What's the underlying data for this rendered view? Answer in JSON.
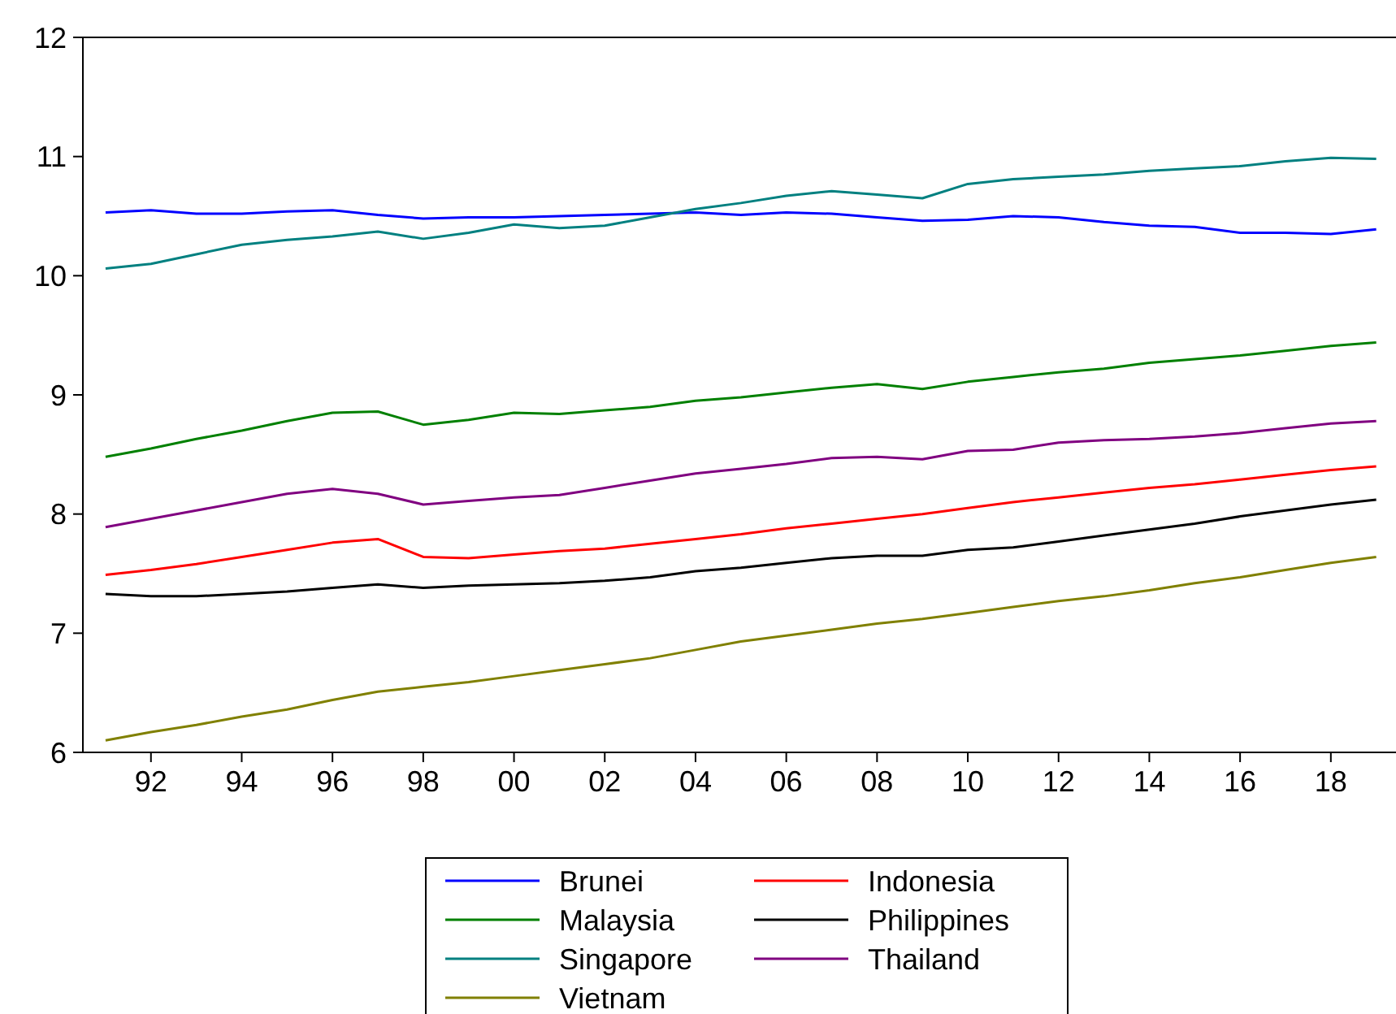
{
  "chart_data": {
    "type": "line",
    "x": [
      1991,
      1992,
      1993,
      1994,
      1995,
      1996,
      1997,
      1998,
      1999,
      2000,
      2001,
      2002,
      2003,
      2004,
      2005,
      2006,
      2007,
      2008,
      2009,
      2010,
      2011,
      2012,
      2013,
      2014,
      2015,
      2016,
      2017,
      2018,
      2019
    ],
    "xlim": [
      1990.5,
      2019.4
    ],
    "xticks": [
      {
        "value": 1992,
        "label": "92"
      },
      {
        "value": 1994,
        "label": "94"
      },
      {
        "value": 1996,
        "label": "96"
      },
      {
        "value": 1998,
        "label": "98"
      },
      {
        "value": 2000,
        "label": "00"
      },
      {
        "value": 2002,
        "label": "02"
      },
      {
        "value": 2004,
        "label": "04"
      },
      {
        "value": 2006,
        "label": "06"
      },
      {
        "value": 2008,
        "label": "08"
      },
      {
        "value": 2010,
        "label": "10"
      },
      {
        "value": 2012,
        "label": "12"
      },
      {
        "value": 2014,
        "label": "14"
      },
      {
        "value": 2016,
        "label": "16"
      },
      {
        "value": 2018,
        "label": "18"
      }
    ],
    "ylim": [
      6,
      12
    ],
    "yticks": [
      6,
      7,
      8,
      9,
      10,
      11,
      12
    ],
    "grid": false,
    "legend": "bottom",
    "line_style": "solid",
    "marker": "none",
    "series": [
      {
        "name": "Brunei",
        "color": "#0000ff",
        "values": [
          10.53,
          10.55,
          10.52,
          10.52,
          10.54,
          10.55,
          10.51,
          10.48,
          10.49,
          10.49,
          10.5,
          10.51,
          10.52,
          10.53,
          10.51,
          10.53,
          10.52,
          10.49,
          10.46,
          10.47,
          10.5,
          10.49,
          10.45,
          10.42,
          10.41,
          10.36,
          10.36,
          10.35,
          10.39
        ]
      },
      {
        "name": "Indonesia",
        "color": "#ff0000",
        "values": [
          7.49,
          7.53,
          7.58,
          7.64,
          7.7,
          7.76,
          7.79,
          7.64,
          7.63,
          7.66,
          7.69,
          7.71,
          7.75,
          7.79,
          7.83,
          7.88,
          7.92,
          7.96,
          8.0,
          8.05,
          8.1,
          8.14,
          8.18,
          8.22,
          8.25,
          8.29,
          8.33,
          8.37,
          8.4
        ]
      },
      {
        "name": "Malaysia",
        "color": "#008000",
        "values": [
          8.48,
          8.55,
          8.63,
          8.7,
          8.78,
          8.85,
          8.86,
          8.75,
          8.79,
          8.85,
          8.84,
          8.87,
          8.9,
          8.95,
          8.98,
          9.02,
          9.06,
          9.09,
          9.05,
          9.11,
          9.15,
          9.19,
          9.22,
          9.27,
          9.3,
          9.33,
          9.37,
          9.41,
          9.44
        ]
      },
      {
        "name": "Philippines",
        "color": "#000000",
        "values": [
          7.33,
          7.31,
          7.31,
          7.33,
          7.35,
          7.38,
          7.41,
          7.38,
          7.4,
          7.41,
          7.42,
          7.44,
          7.47,
          7.52,
          7.55,
          7.59,
          7.63,
          7.65,
          7.65,
          7.7,
          7.72,
          7.77,
          7.82,
          7.87,
          7.92,
          7.98,
          8.03,
          8.08,
          8.12
        ]
      },
      {
        "name": "Singapore",
        "color": "#008080",
        "values": [
          10.06,
          10.1,
          10.18,
          10.26,
          10.3,
          10.33,
          10.37,
          10.31,
          10.36,
          10.43,
          10.4,
          10.42,
          10.49,
          10.56,
          10.61,
          10.67,
          10.71,
          10.68,
          10.65,
          10.77,
          10.81,
          10.83,
          10.85,
          10.88,
          10.9,
          10.92,
          10.96,
          10.99,
          10.98
        ]
      },
      {
        "name": "Thailand",
        "color": "#800080",
        "values": [
          7.89,
          7.96,
          8.03,
          8.1,
          8.17,
          8.21,
          8.17,
          8.08,
          8.11,
          8.14,
          8.16,
          8.22,
          8.28,
          8.34,
          8.38,
          8.42,
          8.47,
          8.48,
          8.46,
          8.53,
          8.54,
          8.6,
          8.62,
          8.63,
          8.65,
          8.68,
          8.72,
          8.76,
          8.78
        ]
      },
      {
        "name": "Vietnam",
        "color": "#808000",
        "values": [
          6.1,
          6.17,
          6.23,
          6.3,
          6.36,
          6.44,
          6.51,
          6.55,
          6.59,
          6.64,
          6.69,
          6.74,
          6.79,
          6.86,
          6.93,
          6.98,
          7.03,
          7.08,
          7.12,
          7.17,
          7.22,
          7.27,
          7.31,
          7.36,
          7.42,
          7.47,
          7.53,
          7.59,
          7.64
        ]
      }
    ]
  }
}
